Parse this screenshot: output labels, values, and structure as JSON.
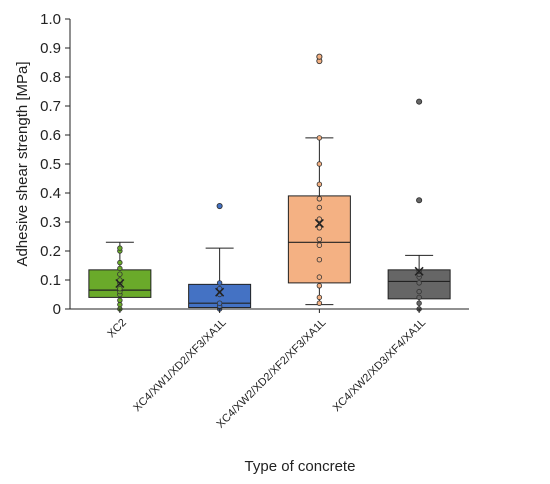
{
  "chart_data": {
    "type": "box",
    "xlabel": "Type of concrete",
    "ylabel": "Adhesive shear strength [MPa]",
    "ylim": [
      0,
      1.0
    ],
    "yticks": [
      0,
      0.1,
      0.2,
      0.3,
      0.4,
      0.5,
      0.6,
      0.7,
      0.8,
      0.9,
      1.0
    ],
    "ytick_labels": [
      "0",
      "0.1",
      "0.2",
      "0.3",
      "0.4",
      "0.5",
      "0.6",
      "0.7",
      "0.8",
      "0.9",
      "1.0"
    ],
    "grid": false,
    "categories": [
      "XC2",
      "XC4/XW1/XD2/XF3/XA1L",
      "XC4/XW2/XD2/XF2/XF3/XA1L",
      "XC4/XW2/XD3/XF4/XA1L"
    ],
    "boxes": [
      {
        "category": "XC2",
        "color": "#6aaa2a",
        "min": 0.0,
        "q1": 0.04,
        "median": 0.065,
        "q3": 0.135,
        "max": 0.23,
        "mean": 0.088,
        "points": [
          0.0,
          0.015,
          0.03,
          0.05,
          0.06,
          0.07,
          0.09,
          0.1,
          0.12,
          0.14,
          0.16,
          0.2,
          0.21
        ],
        "outliers": []
      },
      {
        "category": "XC4/XW1/XD2/XF3/XA1L",
        "color": "#4472c4",
        "min": 0.0,
        "q1": 0.005,
        "median": 0.02,
        "q3": 0.085,
        "max": 0.21,
        "mean": 0.058,
        "points": [
          0.0,
          0.01,
          0.02,
          0.05,
          0.07,
          0.09
        ],
        "outliers": [
          0.355
        ]
      },
      {
        "category": "XC4/XW2/XD2/XF2/XF3/XA1L",
        "color": "#f4b183",
        "min": 0.015,
        "q1": 0.09,
        "median": 0.23,
        "q3": 0.39,
        "max": 0.59,
        "mean": 0.295,
        "points": [
          0.02,
          0.04,
          0.08,
          0.11,
          0.17,
          0.22,
          0.24,
          0.28,
          0.31,
          0.35,
          0.38,
          0.43,
          0.5,
          0.59
        ],
        "outliers": [
          0.855,
          0.87
        ]
      },
      {
        "category": "XC4/XW2/XD3/XF4/XA1L",
        "color": "#666666",
        "min": 0.0,
        "q1": 0.035,
        "median": 0.095,
        "q3": 0.135,
        "max": 0.185,
        "mean": 0.13,
        "points": [
          0.0,
          0.02,
          0.04,
          0.06,
          0.09,
          0.11,
          0.12,
          0.13
        ],
        "outliers": [
          0.375,
          0.715
        ]
      }
    ]
  }
}
